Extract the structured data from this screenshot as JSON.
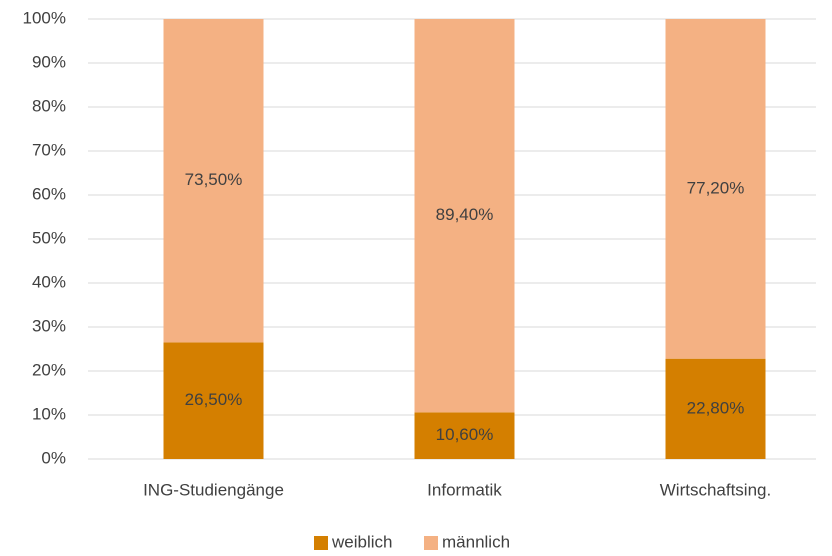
{
  "chart_data": {
    "type": "stacked_bar",
    "categories": [
      "ING-Studiengänge",
      "Informatik",
      "Wirtschaftsing."
    ],
    "series": [
      {
        "name": "weiblich",
        "color": "#d47f00",
        "values": [
          26.5,
          10.6,
          22.8
        ],
        "value_labels": [
          "26,50%",
          "10,60%",
          "22,80%"
        ]
      },
      {
        "name": "männlich",
        "color": "#f4b183",
        "values": [
          73.5,
          89.4,
          77.2
        ],
        "value_labels": [
          "73,50%",
          "89,40%",
          "77,20%"
        ]
      }
    ],
    "ylim": [
      0,
      100
    ],
    "yticks": [
      {
        "value": 0,
        "label": "0%"
      },
      {
        "value": 10,
        "label": "10%"
      },
      {
        "value": 20,
        "label": "20%"
      },
      {
        "value": 30,
        "label": "30%"
      },
      {
        "value": 40,
        "label": "40%"
      },
      {
        "value": 50,
        "label": "50%"
      },
      {
        "value": 60,
        "label": "60%"
      },
      {
        "value": 70,
        "label": "70%"
      },
      {
        "value": 80,
        "label": "80%"
      },
      {
        "value": 90,
        "label": "90%"
      },
      {
        "value": 100,
        "label": "100%"
      }
    ],
    "grid": true,
    "legend": "bottom"
  }
}
